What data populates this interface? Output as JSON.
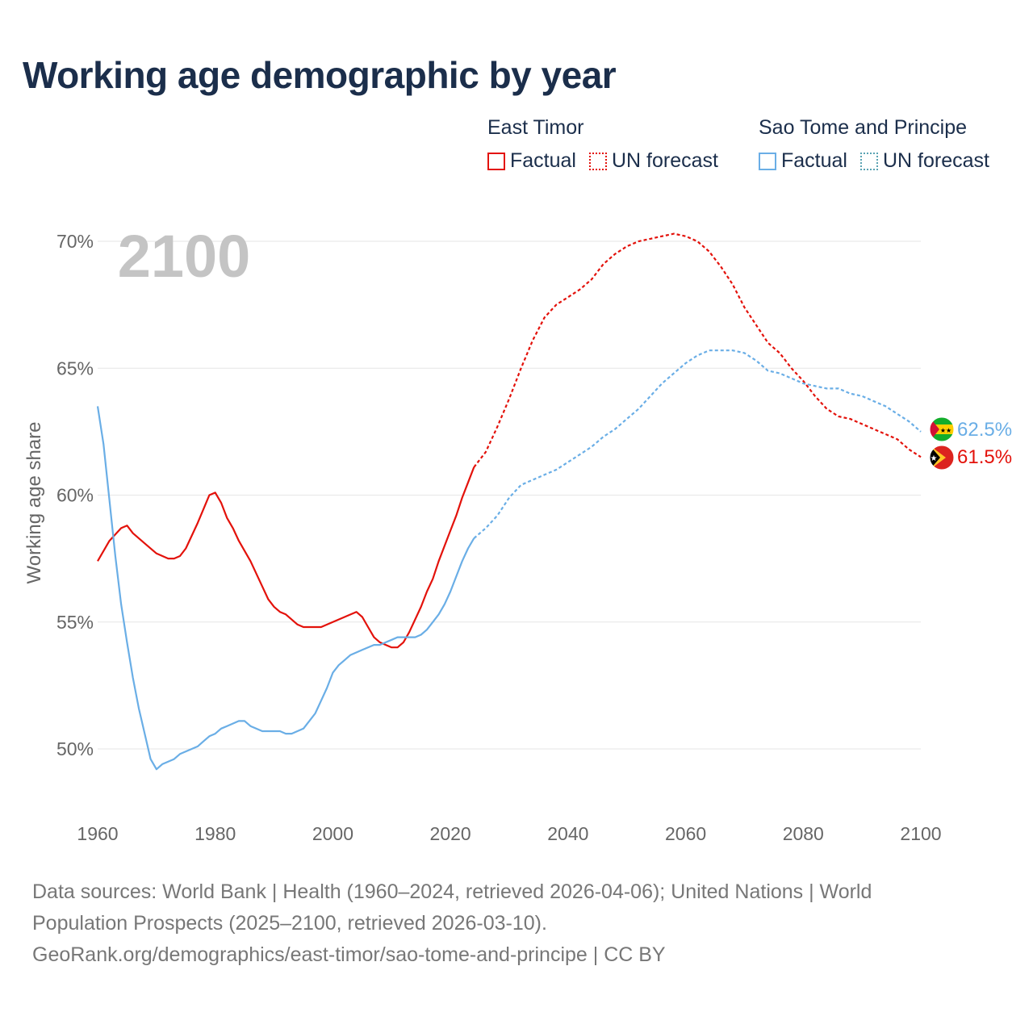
{
  "header": {
    "title": "Working age demographic by year"
  },
  "legend": {
    "groups": [
      {
        "name": "East Timor",
        "factual_label": "Factual",
        "forecast_label": "UN forecast"
      },
      {
        "name": "Sao Tome and Principe",
        "factual_label": "Factual",
        "forecast_label": "UN forecast"
      }
    ]
  },
  "colors": {
    "east_timor": "#e3120b",
    "sao_tome": "#6aaee6",
    "grid": "#e6e6e6",
    "axis_text": "#666666",
    "year_watermark": "#c4c4c4"
  },
  "chart_data": {
    "type": "line",
    "title": "Working age demographic by year",
    "year_display": "2100",
    "xlabel": "",
    "ylabel": "Working age share",
    "xlim": [
      1960,
      2100
    ],
    "ylim": [
      48,
      72
    ],
    "x_ticks": [
      1960,
      1980,
      2000,
      2020,
      2040,
      2060,
      2080,
      2100
    ],
    "x_tick_labels": [
      "1960",
      "1980",
      "2000",
      "2020",
      "2040",
      "2060",
      "2080",
      "2100"
    ],
    "y_ticks": [
      50,
      55,
      60,
      65,
      70
    ],
    "y_tick_labels": [
      "50%",
      "55%",
      "60%",
      "65%",
      "70%"
    ],
    "grid": true,
    "factual_until": 2024,
    "series": [
      {
        "name": "East Timor",
        "color": "#e3120b",
        "end_label": "61.5%",
        "points": [
          [
            1960,
            57.4
          ],
          [
            1962,
            58.2
          ],
          [
            1964,
            58.7
          ],
          [
            1965,
            58.8
          ],
          [
            1966,
            58.5
          ],
          [
            1968,
            58.1
          ],
          [
            1970,
            57.7
          ],
          [
            1972,
            57.5
          ],
          [
            1973,
            57.5
          ],
          [
            1974,
            57.6
          ],
          [
            1975,
            57.9
          ],
          [
            1977,
            58.9
          ],
          [
            1979,
            60.0
          ],
          [
            1980,
            60.1
          ],
          [
            1981,
            59.7
          ],
          [
            1982,
            59.1
          ],
          [
            1983,
            58.7
          ],
          [
            1984,
            58.2
          ],
          [
            1986,
            57.4
          ],
          [
            1988,
            56.4
          ],
          [
            1989,
            55.9
          ],
          [
            1990,
            55.6
          ],
          [
            1991,
            55.4
          ],
          [
            1992,
            55.3
          ],
          [
            1994,
            54.9
          ],
          [
            1995,
            54.8
          ],
          [
            1998,
            54.8
          ],
          [
            2000,
            55.0
          ],
          [
            2002,
            55.2
          ],
          [
            2004,
            55.4
          ],
          [
            2005,
            55.2
          ],
          [
            2006,
            54.8
          ],
          [
            2007,
            54.4
          ],
          [
            2008,
            54.2
          ],
          [
            2009,
            54.1
          ],
          [
            2010,
            54.0
          ],
          [
            2011,
            54.0
          ],
          [
            2012,
            54.2
          ],
          [
            2013,
            54.6
          ],
          [
            2015,
            55.6
          ],
          [
            2016,
            56.2
          ],
          [
            2017,
            56.7
          ],
          [
            2018,
            57.4
          ],
          [
            2020,
            58.6
          ],
          [
            2021,
            59.2
          ],
          [
            2022,
            59.9
          ],
          [
            2023,
            60.5
          ],
          [
            2024,
            61.1
          ],
          [
            2026,
            61.7
          ],
          [
            2028,
            62.7
          ],
          [
            2030,
            63.8
          ],
          [
            2032,
            65.0
          ],
          [
            2034,
            66.1
          ],
          [
            2036,
            67.0
          ],
          [
            2038,
            67.5
          ],
          [
            2040,
            67.8
          ],
          [
            2042,
            68.1
          ],
          [
            2044,
            68.5
          ],
          [
            2046,
            69.1
          ],
          [
            2048,
            69.5
          ],
          [
            2050,
            69.8
          ],
          [
            2052,
            70.0
          ],
          [
            2054,
            70.1
          ],
          [
            2056,
            70.2
          ],
          [
            2058,
            70.3
          ],
          [
            2060,
            70.2
          ],
          [
            2062,
            70.0
          ],
          [
            2064,
            69.6
          ],
          [
            2066,
            69.0
          ],
          [
            2068,
            68.3
          ],
          [
            2070,
            67.4
          ],
          [
            2072,
            66.7
          ],
          [
            2074,
            66.0
          ],
          [
            2076,
            65.6
          ],
          [
            2078,
            65.0
          ],
          [
            2080,
            64.5
          ],
          [
            2082,
            63.9
          ],
          [
            2084,
            63.4
          ],
          [
            2086,
            63.1
          ],
          [
            2088,
            63.0
          ],
          [
            2090,
            62.8
          ],
          [
            2092,
            62.6
          ],
          [
            2094,
            62.4
          ],
          [
            2096,
            62.2
          ],
          [
            2098,
            61.8
          ],
          [
            2100,
            61.5
          ]
        ]
      },
      {
        "name": "Sao Tome and Principe",
        "color": "#6aaee6",
        "end_label": "62.5%",
        "points": [
          [
            1960,
            63.5
          ],
          [
            1961,
            62.0
          ],
          [
            1962,
            59.8
          ],
          [
            1963,
            57.6
          ],
          [
            1964,
            55.7
          ],
          [
            1965,
            54.2
          ],
          [
            1966,
            52.8
          ],
          [
            1967,
            51.6
          ],
          [
            1968,
            50.6
          ],
          [
            1969,
            49.6
          ],
          [
            1970,
            49.2
          ],
          [
            1971,
            49.4
          ],
          [
            1973,
            49.6
          ],
          [
            1974,
            49.8
          ],
          [
            1976,
            50.0
          ],
          [
            1977,
            50.1
          ],
          [
            1978,
            50.3
          ],
          [
            1979,
            50.5
          ],
          [
            1980,
            50.6
          ],
          [
            1981,
            50.8
          ],
          [
            1982,
            50.9
          ],
          [
            1984,
            51.1
          ],
          [
            1985,
            51.1
          ],
          [
            1986,
            50.9
          ],
          [
            1988,
            50.7
          ],
          [
            1991,
            50.7
          ],
          [
            1992,
            50.6
          ],
          [
            1993,
            50.6
          ],
          [
            1995,
            50.8
          ],
          [
            1997,
            51.4
          ],
          [
            1998,
            51.9
          ],
          [
            1999,
            52.4
          ],
          [
            2000,
            53.0
          ],
          [
            2001,
            53.3
          ],
          [
            2002,
            53.5
          ],
          [
            2003,
            53.7
          ],
          [
            2005,
            53.9
          ],
          [
            2007,
            54.1
          ],
          [
            2008,
            54.1
          ],
          [
            2009,
            54.2
          ],
          [
            2010,
            54.3
          ],
          [
            2011,
            54.4
          ],
          [
            2012,
            54.4
          ],
          [
            2014,
            54.4
          ],
          [
            2015,
            54.5
          ],
          [
            2016,
            54.7
          ],
          [
            2017,
            55.0
          ],
          [
            2018,
            55.3
          ],
          [
            2019,
            55.7
          ],
          [
            2020,
            56.2
          ],
          [
            2021,
            56.8
          ],
          [
            2022,
            57.4
          ],
          [
            2023,
            57.9
          ],
          [
            2024,
            58.3
          ],
          [
            2026,
            58.7
          ],
          [
            2028,
            59.2
          ],
          [
            2030,
            59.9
          ],
          [
            2032,
            60.4
          ],
          [
            2034,
            60.6
          ],
          [
            2036,
            60.8
          ],
          [
            2038,
            61.0
          ],
          [
            2040,
            61.3
          ],
          [
            2042,
            61.6
          ],
          [
            2044,
            61.9
          ],
          [
            2046,
            62.3
          ],
          [
            2048,
            62.6
          ],
          [
            2050,
            63.0
          ],
          [
            2052,
            63.4
          ],
          [
            2054,
            63.9
          ],
          [
            2056,
            64.4
          ],
          [
            2058,
            64.8
          ],
          [
            2060,
            65.2
          ],
          [
            2062,
            65.5
          ],
          [
            2064,
            65.7
          ],
          [
            2066,
            65.7
          ],
          [
            2068,
            65.7
          ],
          [
            2070,
            65.6
          ],
          [
            2072,
            65.3
          ],
          [
            2074,
            64.9
          ],
          [
            2076,
            64.8
          ],
          [
            2078,
            64.6
          ],
          [
            2080,
            64.4
          ],
          [
            2082,
            64.3
          ],
          [
            2084,
            64.2
          ],
          [
            2086,
            64.2
          ],
          [
            2088,
            64.0
          ],
          [
            2090,
            63.9
          ],
          [
            2092,
            63.7
          ],
          [
            2094,
            63.5
          ],
          [
            2096,
            63.2
          ],
          [
            2098,
            62.9
          ],
          [
            2100,
            62.5
          ]
        ]
      }
    ]
  },
  "footer": {
    "line1": "Data sources: World Bank | Health (1960–2024, retrieved 2026-04-06); United Nations | World",
    "line2": "Population Prospects (2025–2100, retrieved 2026-03-10).",
    "line3": "GeoRank.org/demographics/east-timor/sao-tome-and-principe | CC BY"
  }
}
